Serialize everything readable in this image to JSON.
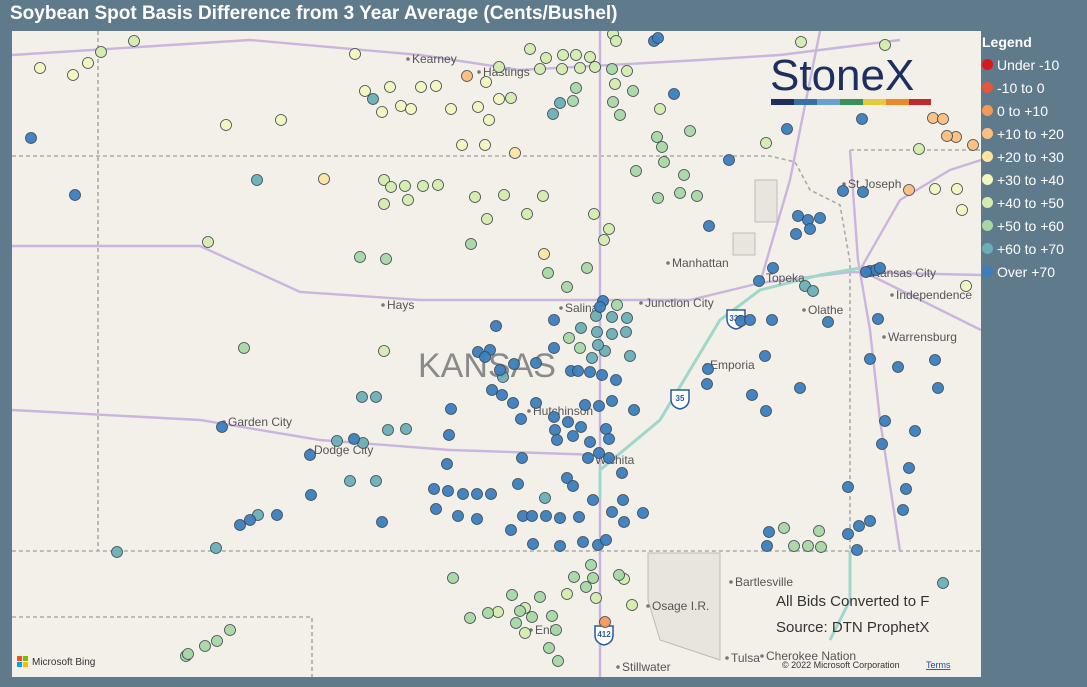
{
  "title": "Soybean Spot Basis Difference from 3 Year Average (Cents/Bushel)",
  "legend": {
    "title": "Legend",
    "items": [
      {
        "label": "Under -10",
        "color": "#d7191c"
      },
      {
        "label": "-10 to 0",
        "color": "#e8553a"
      },
      {
        "label": "0 to +10",
        "color": "#f39a5a"
      },
      {
        "label": "+10 to +20",
        "color": "#fbbf7e"
      },
      {
        "label": "+20 to +30",
        "color": "#fde4a2"
      },
      {
        "label": "+30 to +40",
        "color": "#f2f6bf"
      },
      {
        "label": "+40 to +50",
        "color": "#d3ecae"
      },
      {
        "label": "+50 to +60",
        "color": "#a6d7a4"
      },
      {
        "label": "+60 to +70",
        "color": "#6aaeb6"
      },
      {
        "label": "Over +70",
        "color": "#3a7ebf"
      }
    ]
  },
  "map": {
    "state_label": "KANSAS",
    "cities": [
      "Kearney",
      "Hastings",
      "St Joseph",
      "Manhattan",
      "Topeka",
      "Kansas City",
      "Independence",
      "Junction City",
      "Hays",
      "Salina",
      "Olathe",
      "Warrensburg",
      "Emporia",
      "Hutchinson",
      "Garden City",
      "Dodge City",
      "Wichita",
      "Bartlesville",
      "Osage I.R.",
      "Enid",
      "Stillwater",
      "Tulsa",
      "Cherokee Nation"
    ],
    "highways": [
      "35",
      "335",
      "412"
    ]
  },
  "notes": [
    "All Bids Converted to F",
    "Source: DTN ProphetX"
  ],
  "logo": "StoneX",
  "attribution": {
    "provider": "Microsoft Bing",
    "copyright": "© 2022 Microsoft Corporation",
    "terms": "Terms"
  }
}
